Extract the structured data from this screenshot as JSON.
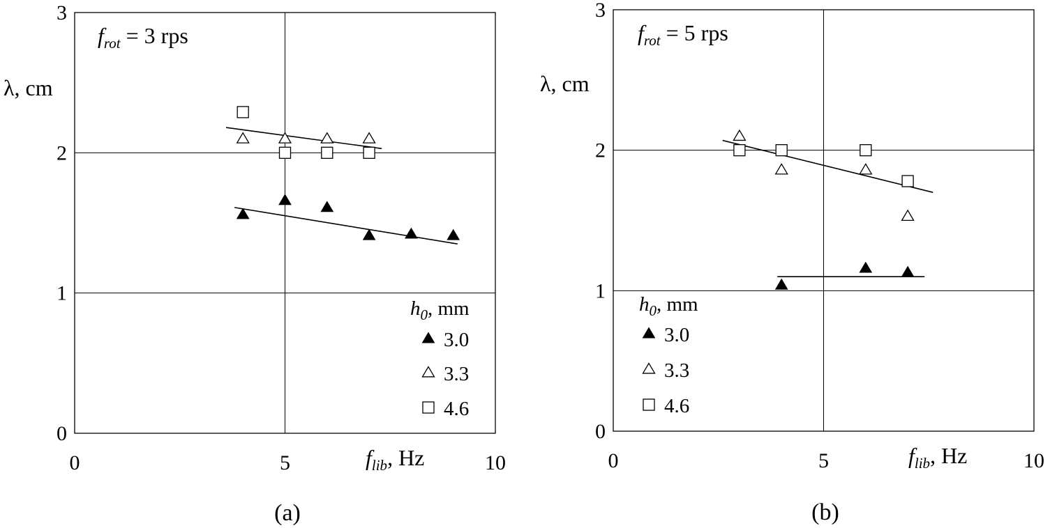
{
  "chart_data": [
    {
      "type": "scatter",
      "panel_label": "(a)",
      "annotation": {
        "main": "f",
        "sub": "rot",
        "rest": " = 3 rps"
      },
      "ylabel": "λ, cm",
      "xlabel": {
        "main": "f",
        "sub": "lib",
        "rest": ", Hz"
      },
      "xlim": [
        0,
        10
      ],
      "ylim": [
        0,
        3
      ],
      "xticks": [
        0,
        5,
        10
      ],
      "yticks": [
        0,
        1,
        2,
        3
      ],
      "grid": true,
      "legend": {
        "title_main": "h",
        "title_sub": "0",
        "title_rest": ", mm",
        "position": "bottom-right"
      },
      "series": [
        {
          "name": "3.0",
          "marker": "filled-triangle",
          "points": [
            [
              4,
              1.56
            ],
            [
              5,
              1.66
            ],
            [
              6,
              1.61
            ],
            [
              7,
              1.41
            ],
            [
              8,
              1.42
            ],
            [
              9,
              1.41
            ]
          ]
        },
        {
          "name": "3.3",
          "marker": "open-triangle",
          "points": [
            [
              4,
              2.1
            ],
            [
              5,
              2.1
            ],
            [
              6,
              2.1
            ],
            [
              7,
              2.1
            ]
          ]
        },
        {
          "name": "4.6",
          "marker": "open-square",
          "points": [
            [
              4,
              2.29
            ],
            [
              5,
              2.0
            ],
            [
              6,
              2.0
            ],
            [
              7,
              2.0
            ]
          ]
        }
      ],
      "trend_lines": [
        {
          "name": "upper",
          "from": [
            3.6,
            2.18
          ],
          "to": [
            7.3,
            2.03
          ]
        },
        {
          "name": "lower",
          "from": [
            3.8,
            1.61
          ],
          "to": [
            9.1,
            1.35
          ]
        }
      ]
    },
    {
      "type": "scatter",
      "panel_label": "(b)",
      "annotation": {
        "main": "f",
        "sub": "rot",
        "rest": " = 5 rps"
      },
      "ylabel": "λ, cm",
      "xlabel": {
        "main": "f",
        "sub": "lib",
        "rest": ", Hz"
      },
      "xlim": [
        0,
        10
      ],
      "ylim": [
        0,
        3
      ],
      "xticks": [
        0,
        5,
        10
      ],
      "yticks": [
        0,
        1,
        2,
        3
      ],
      "grid": true,
      "legend": {
        "title_main": "h",
        "title_sub": "0",
        "title_rest": ", mm",
        "position": "bottom-left"
      },
      "series": [
        {
          "name": "3.0",
          "marker": "filled-triangle",
          "points": [
            [
              4,
              1.04
            ],
            [
              6,
              1.16
            ],
            [
              7,
              1.13
            ]
          ]
        },
        {
          "name": "3.3",
          "marker": "open-triangle",
          "points": [
            [
              3,
              2.1
            ],
            [
              4,
              1.86
            ],
            [
              6,
              1.86
            ],
            [
              7,
              1.53
            ]
          ]
        },
        {
          "name": "4.6",
          "marker": "open-square",
          "points": [
            [
              3,
              2.0
            ],
            [
              4,
              2.0
            ],
            [
              6,
              2.0
            ],
            [
              7,
              1.78
            ]
          ]
        }
      ],
      "trend_lines": [
        {
          "name": "upper",
          "from": [
            2.6,
            2.07
          ],
          "to": [
            7.6,
            1.7
          ]
        },
        {
          "name": "lower",
          "from": [
            3.9,
            1.1
          ],
          "to": [
            7.4,
            1.1
          ]
        }
      ]
    }
  ]
}
